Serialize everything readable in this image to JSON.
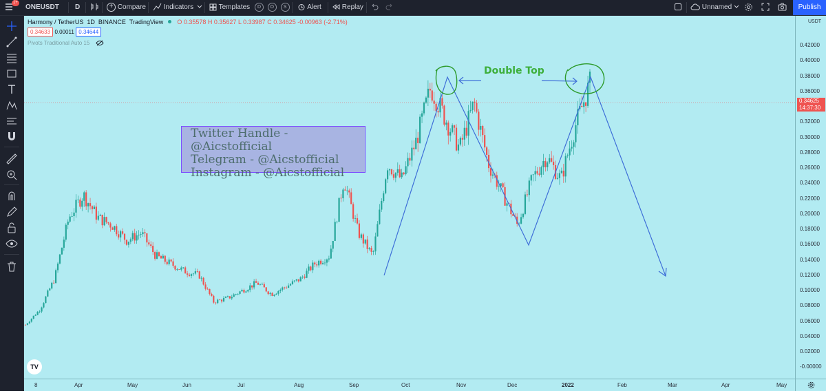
{
  "toolbar": {
    "badge": "1+",
    "symbol": "ONEUSDT",
    "interval": "D",
    "compare": "Compare",
    "indicators": "Indicators",
    "templates": "Templates",
    "circles": [
      "D",
      "O",
      "S"
    ],
    "alert": "Alert",
    "replay": "Replay",
    "layout_name": "Unnamed",
    "publish": "Publish"
  },
  "legend": {
    "title": "Harmony / TetherUS",
    "interval": "1D",
    "exchange": "BINANCE",
    "source": "TradingView",
    "open": "O 0.35578",
    "high": "H 0.35627",
    "low": "L 0.33987",
    "close": "C 0.34625",
    "change": "-0.00963 (-2.71%)",
    "bid": "0.34633",
    "spread": "0.00011",
    "ask": "0.34644",
    "indicator": "Pivots Traditional Auto 15"
  },
  "annotations": {
    "social_lines": [
      "Twitter Handle - @Aicstofficial",
      "Telegram - @Aicstofficial",
      "Instagram - @Aicstofficial"
    ],
    "pattern_label": "Double Top"
  },
  "price_axis": {
    "currency": "USDT",
    "ticks": [
      "0.42000",
      "0.40000",
      "0.38000",
      "0.36000",
      "0.32000",
      "0.30000",
      "0.28000",
      "0.26000",
      "0.24000",
      "0.22000",
      "0.20000",
      "0.18000",
      "0.16000",
      "0.14000",
      "0.12000",
      "0.10000",
      "0.08000",
      "0.06000",
      "0.04000",
      "0.02000",
      "-0.00000"
    ],
    "last_price": "0.34625",
    "countdown": "14:37:30"
  },
  "time_axis": {
    "ticks": [
      "8",
      "Apr",
      "May",
      "Jun",
      "Jul",
      "Aug",
      "Sep",
      "Oct",
      "Nov",
      "Dec",
      "2022",
      "Feb",
      "Mar",
      "Apr",
      "May"
    ]
  },
  "colors": {
    "chart_bg": "#b2ebf2",
    "up_candle": "#26a69a",
    "down_candle": "#ef5350",
    "drawing_line": "#3f6fd8",
    "pattern_green": "#3daf3b",
    "publish_button": "#2962ff"
  },
  "chart_data": {
    "type": "candlestick",
    "title": "Harmony / TetherUS",
    "ylabel": "USDT",
    "ylim": [
      -0.005,
      0.435
    ],
    "x": [
      "Apr",
      "May",
      "Jun",
      "Jul",
      "Aug",
      "Sep",
      "Oct",
      "Nov",
      "Dec",
      "2022"
    ],
    "close_path": [
      [
        "Mar",
        0.03
      ],
      [
        "Mar",
        0.05
      ],
      [
        "Mar",
        0.09
      ],
      [
        "Apr",
        0.17
      ],
      [
        "Apr",
        0.2
      ],
      [
        "Apr",
        0.17
      ],
      [
        "Apr",
        0.16
      ],
      [
        "May",
        0.14
      ],
      [
        "May",
        0.15
      ],
      [
        "May",
        0.12
      ],
      [
        "Jun",
        0.11
      ],
      [
        "Jun",
        0.1
      ],
      [
        "Jun",
        0.095
      ],
      [
        "Jul",
        0.06
      ],
      [
        "Jul",
        0.065
      ],
      [
        "Jul",
        0.075
      ],
      [
        "Jul",
        0.085
      ],
      [
        "Aug",
        0.07
      ],
      [
        "Aug",
        0.08
      ],
      [
        "Aug",
        0.09
      ],
      [
        "Aug",
        0.11
      ],
      [
        "Sep",
        0.12
      ],
      [
        "Sep",
        0.22
      ],
      [
        "Sep",
        0.15
      ],
      [
        "Sep",
        0.12
      ],
      [
        "Oct",
        0.24
      ],
      [
        "Oct",
        0.22
      ],
      [
        "Oct",
        0.27
      ],
      [
        "Oct",
        0.34
      ],
      [
        "Nov",
        0.3
      ],
      [
        "Nov",
        0.26
      ],
      [
        "Nov",
        0.32
      ],
      [
        "Nov",
        0.24
      ],
      [
        "Dec",
        0.2
      ],
      [
        "Dec",
        0.16
      ],
      [
        "Dec",
        0.22
      ],
      [
        "Dec",
        0.25
      ],
      [
        "2022",
        0.22
      ],
      [
        "2022",
        0.29
      ],
      [
        "2022",
        0.345
      ]
    ],
    "pattern_lines": [
      [
        [
          "Sep",
          0.12
        ],
        [
          "Oct",
          0.378
        ],
        [
          "Dec",
          0.16
        ],
        [
          "2022",
          0.378
        ],
        [
          "Mar",
          0.12
        ]
      ]
    ],
    "annotation": "Double Top"
  }
}
